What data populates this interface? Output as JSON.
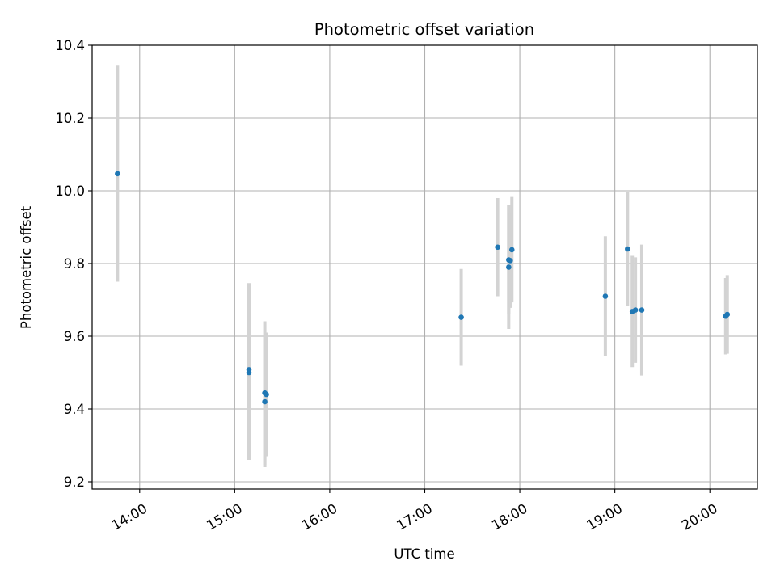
{
  "chart_data": {
    "type": "scatter",
    "title": "Photometric offset variation",
    "xlabel": "UTC time",
    "ylabel": "Photometric offset",
    "x_axis": "time",
    "xlim": [
      "13:30",
      "20:30"
    ],
    "ylim": [
      9.18,
      10.4
    ],
    "xticks": [
      "14:00",
      "15:00",
      "16:00",
      "17:00",
      "18:00",
      "19:00",
      "20:00"
    ],
    "yticks": [
      9.2,
      9.4,
      9.6,
      9.8,
      10.0,
      10.2,
      10.4
    ],
    "ytick_labels": [
      "9.2",
      "9.4",
      "9.6",
      "9.8",
      "10.0",
      "10.2",
      "10.4"
    ],
    "grid": true,
    "colors": {
      "point": "#1f77b4",
      "errorbar": "#d3d3d3"
    },
    "points": [
      {
        "time": "13:46",
        "y": 10.047,
        "yerr": 0.297
      },
      {
        "time": "15:09",
        "y": 9.5,
        "yerr": 0.24
      },
      {
        "time": "15:09",
        "y": 9.508,
        "yerr": 0.238
      },
      {
        "time": "15:19",
        "y": 9.444,
        "yerr": 0.197
      },
      {
        "time": "15:19",
        "y": 9.42,
        "yerr": 0.18
      },
      {
        "time": "15:20",
        "y": 9.44,
        "yerr": 0.17
      },
      {
        "time": "17:23",
        "y": 9.652,
        "yerr": 0.133
      },
      {
        "time": "17:46",
        "y": 9.845,
        "yerr": 0.135
      },
      {
        "time": "17:53",
        "y": 9.79,
        "yerr": 0.17
      },
      {
        "time": "17:53",
        "y": 9.81,
        "yerr": 0.15
      },
      {
        "time": "17:54",
        "y": 9.808,
        "yerr": 0.13
      },
      {
        "time": "17:55",
        "y": 9.838,
        "yerr": 0.145
      },
      {
        "time": "18:54",
        "y": 9.71,
        "yerr": 0.165
      },
      {
        "time": "19:08",
        "y": 9.84,
        "yerr": 0.157
      },
      {
        "time": "19:11",
        "y": 9.668,
        "yerr": 0.153
      },
      {
        "time": "19:13",
        "y": 9.672,
        "yerr": 0.145
      },
      {
        "time": "19:17",
        "y": 9.672,
        "yerr": 0.18
      },
      {
        "time": "20:10",
        "y": 9.655,
        "yerr": 0.105
      },
      {
        "time": "20:11",
        "y": 9.66,
        "yerr": 0.108
      }
    ]
  }
}
